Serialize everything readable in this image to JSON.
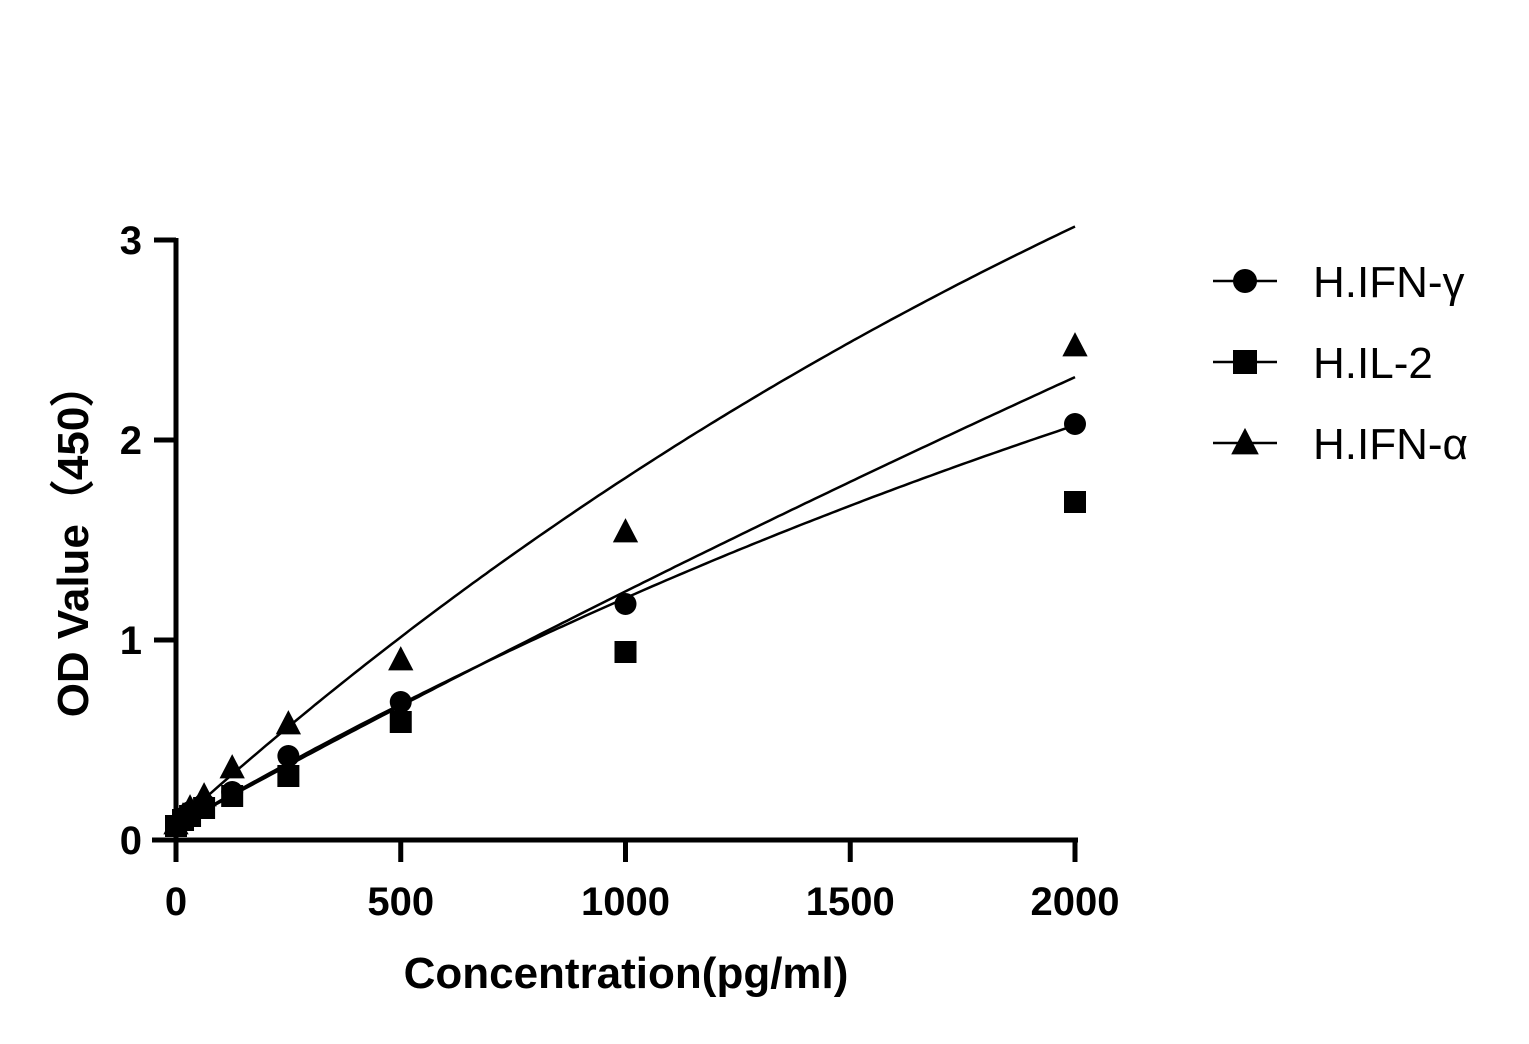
{
  "chart_data": {
    "type": "scatter",
    "title": "",
    "xlabel": "Concentration(pg/ml)",
    "ylabel": "OD Value（450）",
    "xlim": [
      0,
      2000
    ],
    "ylim": [
      0,
      3
    ],
    "x_ticks": [
      0,
      500,
      1000,
      1500,
      2000
    ],
    "y_ticks": [
      0,
      1,
      2,
      3
    ],
    "grid": false,
    "legend_position": "top-right",
    "x": [
      0,
      15.6,
      31.25,
      62.5,
      125,
      250,
      500,
      1000,
      2000
    ],
    "series": [
      {
        "name": "H.IFN-γ",
        "marker": "circle",
        "values": [
          0.07,
          0.11,
          0.14,
          0.18,
          0.24,
          0.42,
          0.69,
          1.18,
          2.08
        ],
        "fit": {
          "a": 13.5,
          "b": 11000
        }
      },
      {
        "name": "H.IL-2",
        "marker": "square",
        "values": [
          0.07,
          0.1,
          0.12,
          0.16,
          0.22,
          0.32,
          0.59,
          0.94,
          1.69
        ],
        "fit": {
          "a": 4.7,
          "b": 3600
        }
      },
      {
        "name": "H.IFN-α",
        "marker": "triangle",
        "values": [
          0.08,
          0.12,
          0.16,
          0.22,
          0.36,
          0.58,
          0.9,
          1.54,
          2.47
        ],
        "fit": {
          "a": 6.32,
          "b": 3125
        }
      }
    ],
    "color": "#000000"
  }
}
